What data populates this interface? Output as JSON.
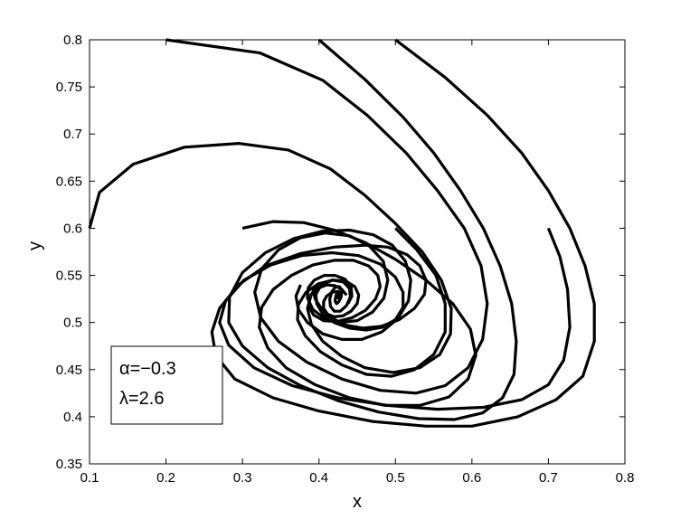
{
  "chart_data": {
    "type": "line",
    "title": "",
    "xlabel": "x",
    "ylabel": "y",
    "xlim": [
      0.1,
      0.8
    ],
    "ylim": [
      0.35,
      0.8
    ],
    "xticks": [
      0.1,
      0.2,
      0.3,
      0.4,
      0.5,
      0.6,
      0.7,
      0.8
    ],
    "yticks": [
      0.35,
      0.4,
      0.45,
      0.5,
      0.55,
      0.6,
      0.65,
      0.7,
      0.75,
      0.8
    ],
    "xtick_labels": [
      "0.1",
      "0.2",
      "0.3",
      "0.4",
      "0.5",
      "0.6",
      "0.7",
      "0.8"
    ],
    "ytick_labels": [
      "0.35",
      "0.4",
      "0.45",
      "0.5",
      "0.55",
      "0.6",
      "0.65",
      "0.7",
      "0.75",
      "0.8"
    ],
    "grid": false,
    "legend_box": {
      "placement": "bottom-left",
      "lines": [
        "α=−0.3",
        "λ=2.6"
      ]
    },
    "line_color": "#000000",
    "series": [
      {
        "x": [
          0.1,
          0.113,
          0.157,
          0.224,
          0.295,
          0.36,
          0.415,
          0.46,
          0.5,
          0.535,
          0.56,
          0.573,
          0.572,
          0.558,
          0.532,
          0.497,
          0.46,
          0.43,
          0.405,
          0.39,
          0.385,
          0.39,
          0.403,
          0.418,
          0.432,
          0.44,
          0.441,
          0.436,
          0.428,
          0.42,
          0.415,
          0.414,
          0.417,
          0.422,
          0.427,
          0.43,
          0.429,
          0.426,
          0.423,
          0.421,
          0.422,
          0.424,
          0.426,
          0.427,
          0.426,
          0.425,
          0.424,
          0.425
        ],
        "y": [
          0.6,
          0.638,
          0.668,
          0.686,
          0.69,
          0.683,
          0.663,
          0.635,
          0.605,
          0.575,
          0.545,
          0.515,
          0.488,
          0.466,
          0.452,
          0.447,
          0.452,
          0.464,
          0.48,
          0.498,
          0.515,
          0.53,
          0.54,
          0.545,
          0.543,
          0.536,
          0.527,
          0.518,
          0.512,
          0.512,
          0.517,
          0.525,
          0.533,
          0.538,
          0.538,
          0.534,
          0.527,
          0.522,
          0.52,
          0.523,
          0.528,
          0.532,
          0.533,
          0.531,
          0.528,
          0.526,
          0.527,
          0.529
        ]
      },
      {
        "x": [
          0.2,
          0.323,
          0.405,
          0.463,
          0.514,
          0.555,
          0.59,
          0.612,
          0.62,
          0.614,
          0.595,
          0.565,
          0.527,
          0.48,
          0.43,
          0.384,
          0.347,
          0.324,
          0.316,
          0.325,
          0.347,
          0.376,
          0.408,
          0.44,
          0.466,
          0.484,
          0.49,
          0.485,
          0.47,
          0.45,
          0.427,
          0.406,
          0.392,
          0.385,
          0.386,
          0.394,
          0.407,
          0.421,
          0.434,
          0.442,
          0.443,
          0.438
        ],
        "y": [
          0.8,
          0.786,
          0.757,
          0.72,
          0.68,
          0.64,
          0.6,
          0.56,
          0.52,
          0.482,
          0.452,
          0.433,
          0.425,
          0.428,
          0.44,
          0.458,
          0.48,
          0.505,
          0.532,
          0.557,
          0.577,
          0.59,
          0.595,
          0.592,
          0.581,
          0.565,
          0.545,
          0.526,
          0.511,
          0.502,
          0.5,
          0.505,
          0.514,
          0.526,
          0.537,
          0.545,
          0.55,
          0.55,
          0.546,
          0.538,
          0.528,
          0.52
        ]
      },
      {
        "x": [
          0.4,
          0.46,
          0.51,
          0.55,
          0.585,
          0.615,
          0.637,
          0.652,
          0.658,
          0.655,
          0.64,
          0.614,
          0.577,
          0.53,
          0.478,
          0.425,
          0.376,
          0.333,
          0.3,
          0.282,
          0.283,
          0.3,
          0.33,
          0.367,
          0.405,
          0.44,
          0.471,
          0.496,
          0.513,
          0.52,
          0.517,
          0.503,
          0.482,
          0.456,
          0.43,
          0.405,
          0.385,
          0.373,
          0.37,
          0.376
        ],
        "y": [
          0.8,
          0.758,
          0.718,
          0.68,
          0.64,
          0.6,
          0.56,
          0.52,
          0.48,
          0.445,
          0.42,
          0.404,
          0.397,
          0.398,
          0.405,
          0.417,
          0.433,
          0.452,
          0.475,
          0.5,
          0.527,
          0.553,
          0.574,
          0.589,
          0.597,
          0.598,
          0.593,
          0.582,
          0.565,
          0.545,
          0.523,
          0.504,
          0.49,
          0.482,
          0.482,
          0.488,
          0.5,
          0.514,
          0.528,
          0.54
        ]
      },
      {
        "x": [
          0.5,
          0.565,
          0.62,
          0.665,
          0.7,
          0.728,
          0.748,
          0.76,
          0.76,
          0.745,
          0.71,
          0.66,
          0.6,
          0.54,
          0.47,
          0.4,
          0.34,
          0.29,
          0.265,
          0.26,
          0.27,
          0.295,
          0.33,
          0.375,
          0.42,
          0.46,
          0.49,
          0.515,
          0.532,
          0.54,
          0.538,
          0.525,
          0.505,
          0.482,
          0.458,
          0.436,
          0.418,
          0.404,
          0.395,
          0.392
        ],
        "y": [
          0.8,
          0.76,
          0.72,
          0.68,
          0.64,
          0.6,
          0.56,
          0.52,
          0.48,
          0.443,
          0.418,
          0.4,
          0.39,
          0.39,
          0.395,
          0.406,
          0.42,
          0.44,
          0.465,
          0.49,
          0.515,
          0.54,
          0.56,
          0.573,
          0.58,
          0.582,
          0.58,
          0.572,
          0.56,
          0.545,
          0.53,
          0.515,
          0.503,
          0.496,
          0.494,
          0.497,
          0.504,
          0.514,
          0.525,
          0.536
        ]
      },
      {
        "x": [
          0.3,
          0.34,
          0.38,
          0.42,
          0.46,
          0.5,
          0.54,
          0.575,
          0.598,
          0.605,
          0.595,
          0.57,
          0.532,
          0.487,
          0.44,
          0.395,
          0.357,
          0.333,
          0.322,
          0.325,
          0.34,
          0.364,
          0.392,
          0.42,
          0.445,
          0.465,
          0.477,
          0.48,
          0.474,
          0.461,
          0.443,
          0.424,
          0.406,
          0.393,
          0.387,
          0.388,
          0.395,
          0.406,
          0.418,
          0.429
        ],
        "y": [
          0.6,
          0.607,
          0.606,
          0.598,
          0.585,
          0.567,
          0.545,
          0.52,
          0.493,
          0.465,
          0.44,
          0.421,
          0.412,
          0.412,
          0.42,
          0.434,
          0.452,
          0.473,
          0.495,
          0.516,
          0.535,
          0.55,
          0.561,
          0.566,
          0.566,
          0.56,
          0.55,
          0.538,
          0.525,
          0.513,
          0.505,
          0.501,
          0.502,
          0.508,
          0.517,
          0.527,
          0.536,
          0.542,
          0.545,
          0.544
        ]
      },
      {
        "x": [
          0.5,
          0.528,
          0.553,
          0.565,
          0.565,
          0.55,
          0.525,
          0.495,
          0.462,
          0.43,
          0.402,
          0.382,
          0.372,
          0.373,
          0.383,
          0.399,
          0.418,
          0.435,
          0.447,
          0.452,
          0.45,
          0.442,
          0.431,
          0.42,
          0.411,
          0.406,
          0.406,
          0.41,
          0.417,
          0.424,
          0.43
        ],
        "y": [
          0.6,
          0.577,
          0.55,
          0.52,
          0.49,
          0.466,
          0.45,
          0.443,
          0.445,
          0.455,
          0.469,
          0.486,
          0.503,
          0.519,
          0.532,
          0.541,
          0.545,
          0.544,
          0.538,
          0.529,
          0.52,
          0.512,
          0.507,
          0.506,
          0.509,
          0.515,
          0.522,
          0.528,
          0.532,
          0.533,
          0.531
        ]
      },
      {
        "x": [
          0.7,
          0.715,
          0.725,
          0.728,
          0.72,
          0.7,
          0.665,
          0.615,
          0.555,
          0.49,
          0.425,
          0.365,
          0.315,
          0.282,
          0.27,
          0.278,
          0.302,
          0.337,
          0.377,
          0.417,
          0.452,
          0.48,
          0.5,
          0.51,
          0.51,
          0.5,
          0.483,
          0.462,
          0.44,
          0.42,
          0.405,
          0.397,
          0.396,
          0.401,
          0.41,
          0.421,
          0.43,
          0.436
        ],
        "y": [
          0.6,
          0.57,
          0.535,
          0.495,
          0.46,
          0.434,
          0.418,
          0.41,
          0.408,
          0.412,
          0.42,
          0.433,
          0.452,
          0.476,
          0.5,
          0.523,
          0.545,
          0.561,
          0.571,
          0.574,
          0.571,
          0.562,
          0.548,
          0.532,
          0.516,
          0.503,
          0.495,
          0.492,
          0.494,
          0.5,
          0.509,
          0.52,
          0.53,
          0.537,
          0.54,
          0.539,
          0.535,
          0.529
        ]
      }
    ]
  }
}
